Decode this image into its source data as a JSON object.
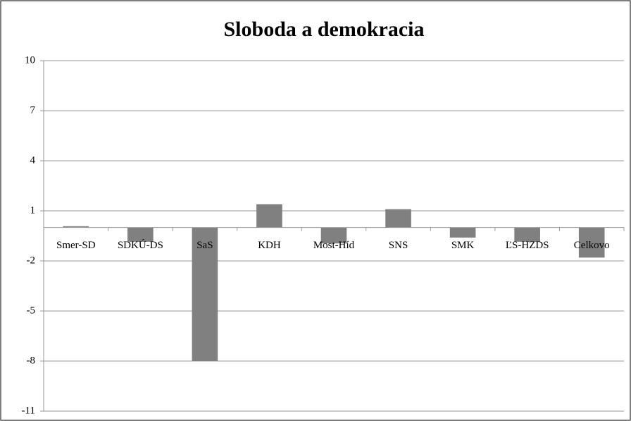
{
  "chart_data": {
    "type": "bar",
    "title": "Sloboda a demokracia",
    "categories": [
      "Smer-SD",
      "SDKÚ-DS",
      "SaS",
      "KDH",
      "Most-Híd",
      "SNS",
      "SMK",
      "ĽS-HZDS",
      "Celkovo"
    ],
    "values": [
      0.08,
      -0.85,
      -8,
      1.4,
      -0.95,
      1.1,
      -0.6,
      -0.85,
      -1.8
    ],
    "color": "#808080",
    "ylim": [
      -11,
      10
    ],
    "yticks": [
      -11,
      -8,
      -5,
      -2,
      1,
      4,
      7,
      10
    ],
    "grid": true
  }
}
